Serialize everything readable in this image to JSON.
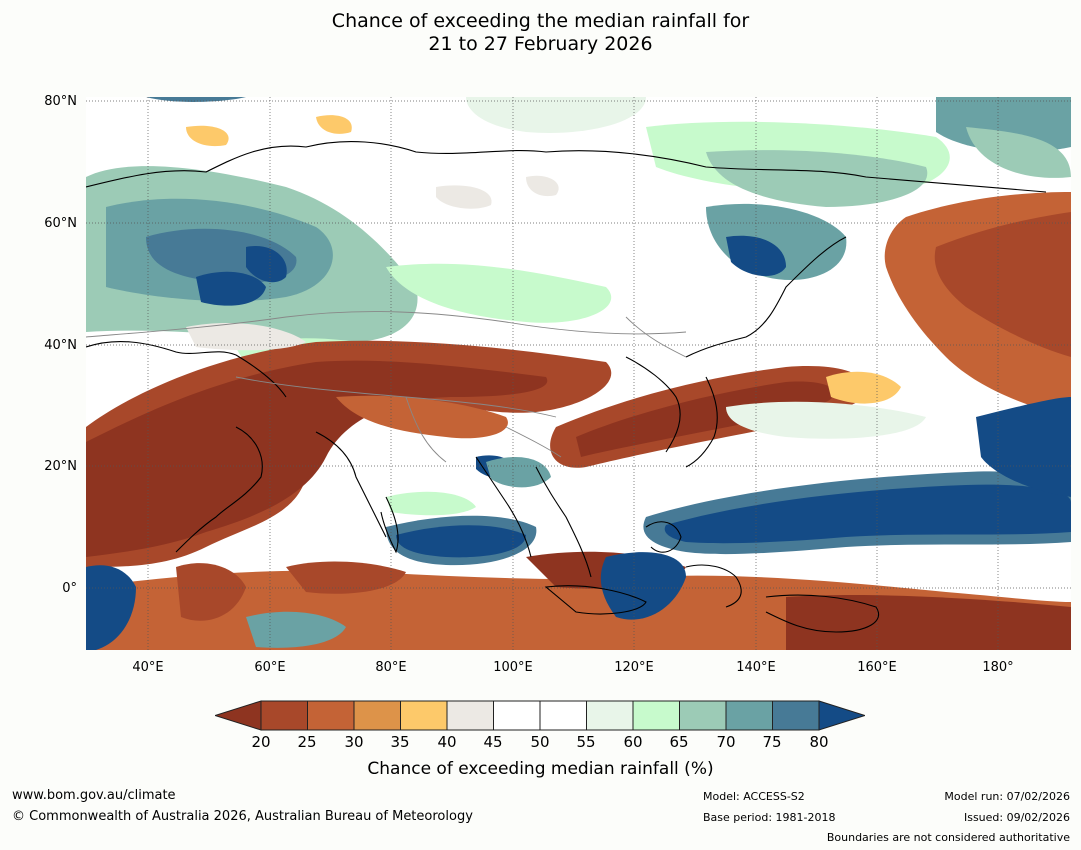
{
  "title": {
    "line1": "Chance of exceeding the median rainfall for",
    "line2": "21 to 27 February 2026"
  },
  "map": {
    "lat_labels": [
      "80°N",
      "60°N",
      "40°N",
      "20°N",
      "0°"
    ],
    "lon_labels": [
      "40°E",
      "60°E",
      "80°E",
      "100°E",
      "120°E",
      "140°E",
      "160°E",
      "180°"
    ],
    "lon_range": [
      30,
      192
    ],
    "lat_range": [
      -10,
      80
    ]
  },
  "colorbar": {
    "ticks": [
      "20",
      "25",
      "30",
      "35",
      "40",
      "45",
      "50",
      "55",
      "60",
      "65",
      "70",
      "75",
      "80"
    ],
    "colors": {
      "below_20": "#8e3420",
      "c20_25": "#a8482a",
      "c25_30": "#c46336",
      "c30_35": "#dd9349",
      "c35_40": "#fdc96a",
      "c40_45": "#ece9e4",
      "c45_50": "#ffffff",
      "c50_55": "#ffffff",
      "c55_60": "#e8f5e9",
      "c60_65": "#c7facc",
      "c65_70": "#9ccbb6",
      "c70_75": "#6aa2a4",
      "c75_80": "#477a96",
      "above_80": "#144b86"
    },
    "label": "Chance of exceeding median rainfall (%)"
  },
  "footer": {
    "website": "www.bom.gov.au/climate",
    "copyright": "© Commonwealth of Australia 2026, Australian Bureau of Meteorology",
    "model": "Model: ACCESS-S2",
    "base_period": "Base period: 1981-2018",
    "model_run": "Model run: 07/02/2026",
    "issued": "Issued: 09/02/2026",
    "boundaries_note": "Boundaries are not considered authoritative"
  }
}
